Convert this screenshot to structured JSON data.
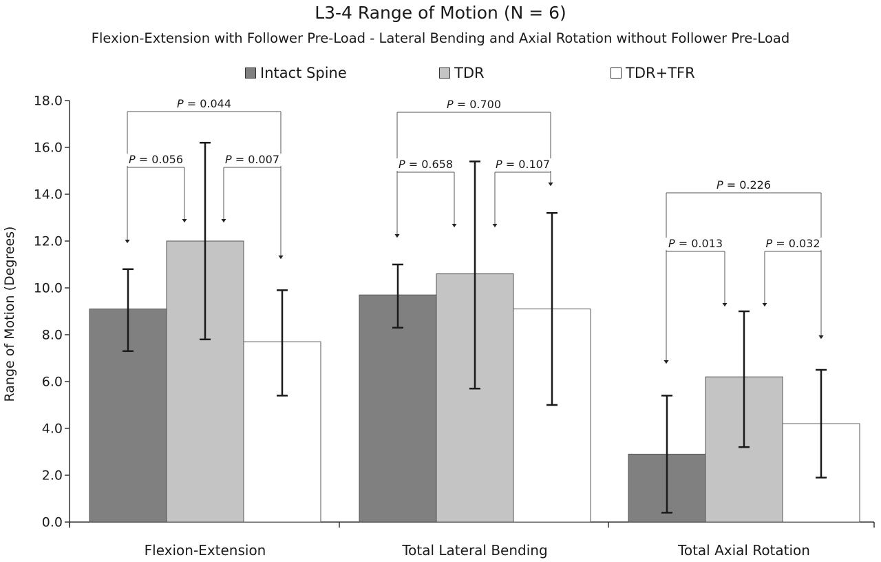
{
  "chart_data": {
    "type": "bar",
    "title": "L3-4 Range of Motion (N = 6)",
    "subtitle": "Flexion-Extension with Follower Pre-Load - Lateral Bending and Axial Rotation without Follower Pre-Load",
    "ylabel": "Range of Motion (Degrees)",
    "xlabel": "",
    "ylim": [
      0,
      18
    ],
    "yticks": [
      "0.0",
      "2.0",
      "4.0",
      "6.0",
      "8.0",
      "10.0",
      "12.0",
      "14.0",
      "16.0",
      "18.0"
    ],
    "categories": [
      "Flexion-Extension",
      "Total Lateral Bending",
      "Total Axial Rotation"
    ],
    "legend_position": "top",
    "grid": false,
    "series": [
      {
        "name": "Intact Spine",
        "color": "#808080",
        "values": [
          9.1,
          9.7,
          2.9
        ],
        "err_low": [
          7.3,
          8.3,
          0.4
        ],
        "err_high": [
          10.8,
          11.0,
          5.4
        ]
      },
      {
        "name": "TDR",
        "color": "#c4c4c4",
        "values": [
          12.0,
          10.6,
          6.2
        ],
        "err_low": [
          7.8,
          5.7,
          3.2
        ],
        "err_high": [
          16.2,
          15.4,
          9.0
        ]
      },
      {
        "name": "TDR+TFR",
        "color": "#ffffff",
        "values": [
          7.7,
          9.1,
          4.2
        ],
        "err_low": [
          5.4,
          5.0,
          1.9
        ],
        "err_high": [
          9.9,
          13.2,
          6.5
        ]
      }
    ],
    "p_values": [
      [
        {
          "label": "P = 0.044",
          "from": 0,
          "to": 2
        },
        {
          "label": "P = 0.056",
          "from": 0,
          "to": 1
        },
        {
          "label": "P = 0.007",
          "from": 1,
          "to": 2
        }
      ],
      [
        {
          "label": "P = 0.700",
          "from": 0,
          "to": 2
        },
        {
          "label": "P = 0.658",
          "from": 0,
          "to": 1
        },
        {
          "label": "P = 0.107",
          "from": 1,
          "to": 2
        }
      ],
      [
        {
          "label": "P = 0.226",
          "from": 0,
          "to": 2
        },
        {
          "label": "P = 0.013",
          "from": 0,
          "to": 1
        },
        {
          "label": "P = 0.032",
          "from": 1,
          "to": 2
        }
      ]
    ]
  }
}
